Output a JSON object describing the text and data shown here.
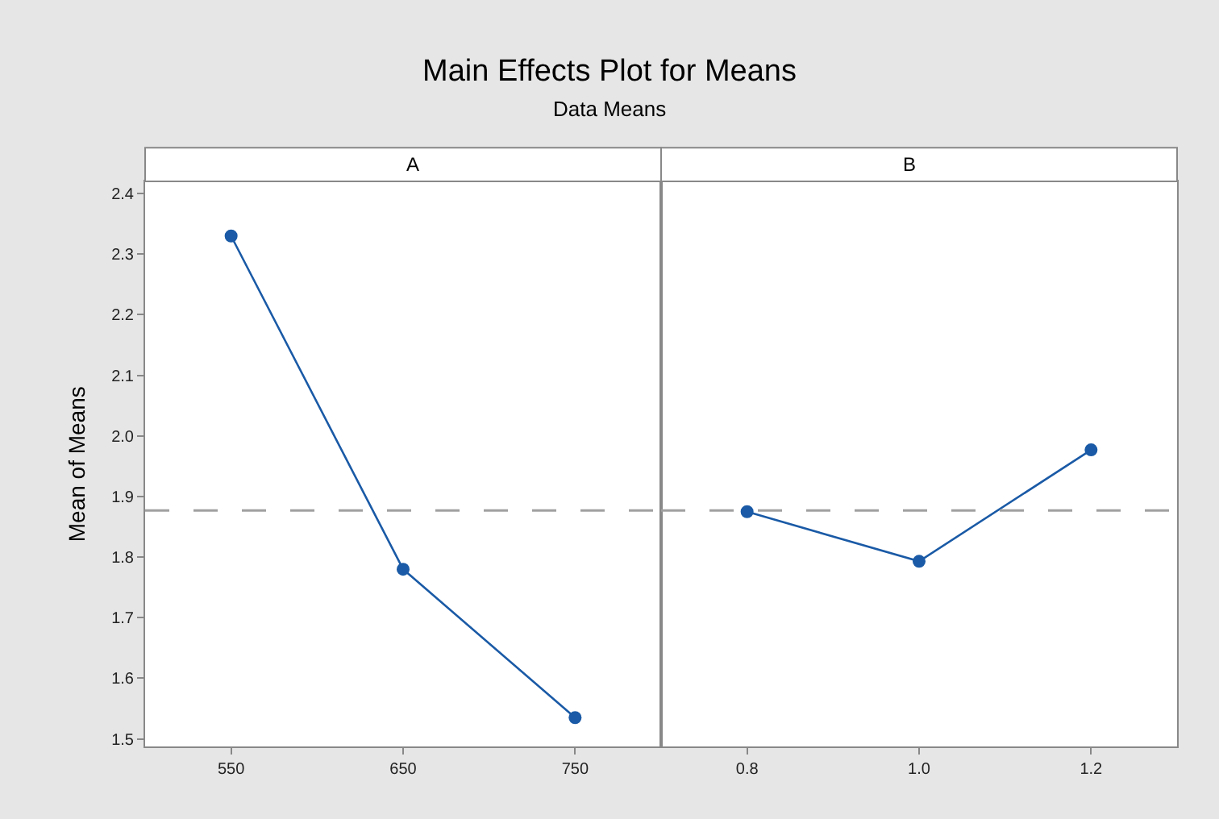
{
  "chart_data": [
    {
      "type": "other",
      "title": "Main Effects Plot for Means",
      "subtitle": "Data Means"
    },
    {
      "type": "line",
      "title": "A",
      "ylabel": "Mean of Means",
      "categories": [
        "550",
        "650",
        "750"
      ],
      "series": [
        {
          "color": "#1a5aa6",
          "values": [
            2.33,
            1.78,
            1.535
          ]
        }
      ],
      "ylim": [
        1.487,
        2.42
      ],
      "yticks": [
        1.5,
        1.6,
        1.7,
        1.8,
        1.9,
        {
          "value": 2,
          "label": "2.0"
        },
        2.1,
        2.2,
        2.3,
        2.4
      ],
      "marker": "circle",
      "grid": false,
      "ref_lines": [
        {
          "axis": "y",
          "value": 1.877,
          "color": "#a0a0a0",
          "line_style": "dashed"
        }
      ]
    },
    {
      "type": "line",
      "title": "B",
      "categories": [
        "0.8",
        "1.0",
        "1.2"
      ],
      "series": [
        {
          "color": "#1a5aa6",
          "values": [
            1.875,
            1.793,
            1.977
          ]
        }
      ],
      "ylim": [
        1.487,
        2.42
      ],
      "yticks": [
        1.5,
        1.6,
        1.7,
        1.8,
        1.9,
        2,
        2.1,
        2.2,
        2.3,
        2.4
      ],
      "tick_labels": "x",
      "marker": "circle",
      "grid": false,
      "ref_lines": [
        {
          "axis": "y",
          "value": 1.877,
          "color": "#a0a0a0",
          "line_style": "dashed"
        }
      ]
    }
  ]
}
